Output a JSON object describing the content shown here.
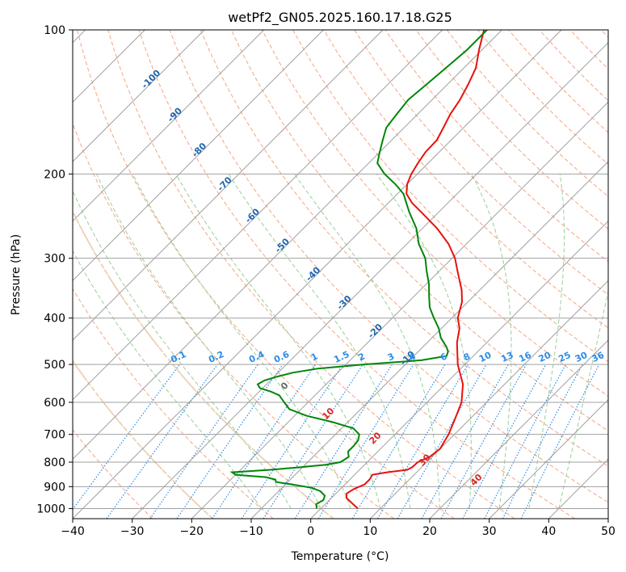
{
  "chart_data": {
    "type": "line",
    "subtype": "skew-T log-P diagram",
    "title": "wetPf2_GN05.2025.160.17.18.G25",
    "xlabel": "Temperature (°C)",
    "ylabel": "Pressure (hPa)",
    "xlim": [
      -40,
      50
    ],
    "ylim": [
      1050,
      100
    ],
    "y_scale": "log",
    "x_ticks": [
      -40,
      -30,
      -20,
      -10,
      0,
      10,
      20,
      30,
      40,
      50
    ],
    "x_tick_labels": [
      "−40",
      "−30",
      "−20",
      "−10",
      "0",
      "10",
      "20",
      "30",
      "40",
      "50"
    ],
    "y_ticks": [
      1000,
      900,
      800,
      700,
      600,
      500,
      400,
      300,
      200,
      100
    ],
    "y_tick_labels": [
      "1000",
      "900",
      "800",
      "700",
      "600",
      "500",
      "400",
      "300",
      "200",
      "100"
    ],
    "grid": true,
    "series": [
      {
        "role": "temperature",
        "color": "#e8120c",
        "points": [
          [
            1000,
            6.2
          ],
          [
            970,
            4.0
          ],
          [
            950,
            2.5
          ],
          [
            930,
            1.8
          ],
          [
            910,
            2.3
          ],
          [
            890,
            3.3
          ],
          [
            870,
            3.3
          ],
          [
            850,
            3.0
          ],
          [
            840,
            5.0
          ],
          [
            830,
            8.0
          ],
          [
            820,
            8.4
          ],
          [
            800,
            8.5
          ],
          [
            780,
            9.6
          ],
          [
            750,
            10.0
          ],
          [
            700,
            9.0
          ],
          [
            650,
            7.5
          ],
          [
            600,
            5.8
          ],
          [
            550,
            3.0
          ],
          [
            500,
            -1.2
          ],
          [
            450,
            -5.0
          ],
          [
            420,
            -7.0
          ],
          [
            400,
            -9.0
          ],
          [
            370,
            -11.0
          ],
          [
            350,
            -13.0
          ],
          [
            320,
            -16.8
          ],
          [
            300,
            -19.5
          ],
          [
            280,
            -23.0
          ],
          [
            260,
            -27.5
          ],
          [
            240,
            -33.0
          ],
          [
            230,
            -36.0
          ],
          [
            220,
            -38.5
          ],
          [
            210,
            -40.0
          ],
          [
            200,
            -41.0
          ],
          [
            190,
            -41.7
          ],
          [
            180,
            -42.3
          ],
          [
            170,
            -42.4
          ],
          [
            160,
            -43.4
          ],
          [
            150,
            -44.5
          ],
          [
            140,
            -45.3
          ],
          [
            130,
            -46.5
          ],
          [
            120,
            -48.0
          ],
          [
            110,
            -50.5
          ],
          [
            100,
            -53.0
          ]
        ]
      },
      {
        "role": "dewpoint",
        "color": "#00860a",
        "points": [
          [
            1000,
            -0.7
          ],
          [
            980,
            -1.5
          ],
          [
            960,
            -1.0
          ],
          [
            940,
            -1.5
          ],
          [
            920,
            -3.0
          ],
          [
            905,
            -5.0
          ],
          [
            890,
            -9.0
          ],
          [
            880,
            -12.0
          ],
          [
            870,
            -12.5
          ],
          [
            860,
            -14.5
          ],
          [
            850,
            -20.0
          ],
          [
            840,
            -21.0
          ],
          [
            830,
            -15.0
          ],
          [
            820,
            -10.5
          ],
          [
            810,
            -6.5
          ],
          [
            800,
            -4.5
          ],
          [
            780,
            -4.0
          ],
          [
            760,
            -5.0
          ],
          [
            740,
            -5.0
          ],
          [
            720,
            -5.2
          ],
          [
            700,
            -6.0
          ],
          [
            680,
            -8.0
          ],
          [
            660,
            -12.5
          ],
          [
            640,
            -18.0
          ],
          [
            620,
            -22.0
          ],
          [
            600,
            -24.0
          ],
          [
            590,
            -25.0
          ],
          [
            580,
            -26.0
          ],
          [
            570,
            -28.0
          ],
          [
            560,
            -30.5
          ],
          [
            550,
            -31.5
          ],
          [
            540,
            -31.0
          ],
          [
            530,
            -29.5
          ],
          [
            520,
            -27.5
          ],
          [
            510,
            -24.0
          ],
          [
            500,
            -17.0
          ],
          [
            490,
            -8.0
          ],
          [
            480,
            -4.5
          ],
          [
            470,
            -5.0
          ],
          [
            460,
            -6.0
          ],
          [
            440,
            -8.5
          ],
          [
            420,
            -10.5
          ],
          [
            400,
            -13.0
          ],
          [
            380,
            -15.5
          ],
          [
            360,
            -17.5
          ],
          [
            340,
            -19.5
          ],
          [
            320,
            -22.0
          ],
          [
            300,
            -24.5
          ],
          [
            280,
            -28.0
          ],
          [
            260,
            -31.0
          ],
          [
            240,
            -35.0
          ],
          [
            220,
            -39.0
          ],
          [
            210,
            -42.0
          ],
          [
            200,
            -45.5
          ],
          [
            190,
            -48.5
          ],
          [
            180,
            -50.0
          ],
          [
            170,
            -51.5
          ],
          [
            160,
            -53.0
          ],
          [
            150,
            -53.5
          ],
          [
            140,
            -54.0
          ],
          [
            130,
            -53.5
          ],
          [
            120,
            -53.0
          ],
          [
            110,
            -52.5
          ],
          [
            100,
            -52.5
          ]
        ]
      }
    ],
    "isotherm_labels": [
      "-100",
      "-90",
      "-80",
      "-70",
      "-60",
      "-50",
      "-40",
      "-30",
      "-20",
      "-10"
    ],
    "isotherm_label_positions": [
      [
        -100,
        128
      ],
      [
        -90,
        152
      ],
      [
        -80,
        180
      ],
      [
        -70,
        212
      ],
      [
        -60,
        247
      ],
      [
        -50,
        285
      ],
      [
        -40,
        327
      ],
      [
        -30,
        375
      ],
      [
        -20,
        430
      ],
      [
        -10,
        490
      ]
    ],
    "mixing_ratio_labels": [
      "0.1",
      "0.2",
      "0.4",
      "0.6",
      "1",
      "1.5",
      "2",
      "3",
      "4",
      "6",
      "8",
      "10",
      "13",
      "16",
      "20",
      "25",
      "30",
      "36"
    ],
    "mixing_ratio_values": [
      0.1,
      0.2,
      0.4,
      0.6,
      1,
      1.5,
      2,
      3,
      4,
      6,
      8,
      10,
      13,
      16,
      20,
      25,
      30,
      36
    ],
    "adiabat_labels": [
      "0",
      "10",
      "20",
      "30",
      "40"
    ],
    "adiabat_label_values": [
      0,
      10,
      20,
      30,
      40
    ],
    "colors": {
      "temperature": "#e8120c",
      "dewpoint": "#00860a",
      "isotherm_grid": "#a0a0a0",
      "isobar_grid": "#a0a0a0",
      "dry_adiabat": "#f4a582",
      "moist_adiabat": "#98cf98",
      "mixing_ratio": "#2b8ce8",
      "isotherm_label": "#2166ac",
      "adiabat_label": "#d62728",
      "zero_label": "#666666",
      "thick_dry_adiabat": "#ead6b8"
    }
  }
}
